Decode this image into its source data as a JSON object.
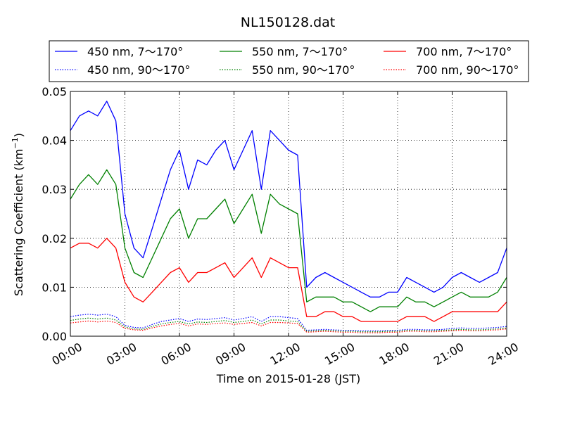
{
  "chart_data": {
    "type": "line",
    "title": "NL150128.dat",
    "xlabel": "Time on 2015-01-28 (JST)",
    "ylabel": "Scattering Coefficient (km",
    "ylabel_sup": "−1",
    "ylabel_close": ")",
    "xlim": [
      "00:00",
      "24:00"
    ],
    "ylim": [
      0.0,
      0.05
    ],
    "x_ticks": [
      "00:00",
      "03:00",
      "06:00",
      "09:00",
      "12:00",
      "15:00",
      "18:00",
      "21:00",
      "24:00"
    ],
    "y_ticks": [
      "0.00",
      "0.01",
      "0.02",
      "0.03",
      "0.04",
      "0.05"
    ],
    "grid": true,
    "legend_position": "top",
    "x": [
      "00:00",
      "00:30",
      "01:00",
      "01:30",
      "02:00",
      "02:30",
      "03:00",
      "03:30",
      "04:00",
      "04:30",
      "05:00",
      "05:30",
      "06:00",
      "06:30",
      "07:00",
      "07:30",
      "08:00",
      "08:30",
      "09:00",
      "09:30",
      "10:00",
      "10:30",
      "11:00",
      "11:30",
      "12:00",
      "12:30",
      "13:00",
      "13:30",
      "14:00",
      "14:30",
      "15:00",
      "15:30",
      "16:00",
      "16:30",
      "17:00",
      "17:30",
      "18:00",
      "18:30",
      "19:00",
      "19:30",
      "20:00",
      "20:30",
      "21:00",
      "21:30",
      "22:00",
      "22:30",
      "23:00",
      "23:30",
      "24:00"
    ],
    "series": [
      {
        "name": "450 nm, 7～170°",
        "color": "#0000ff",
        "style": "solid",
        "values": [
          0.042,
          0.045,
          0.046,
          0.045,
          0.048,
          0.044,
          0.025,
          0.018,
          0.016,
          0.022,
          0.028,
          0.034,
          0.038,
          0.03,
          0.036,
          0.035,
          0.038,
          0.04,
          0.034,
          0.038,
          0.042,
          0.03,
          0.042,
          0.04,
          0.038,
          0.037,
          0.01,
          0.012,
          0.013,
          0.012,
          0.011,
          0.01,
          0.009,
          0.008,
          0.008,
          0.009,
          0.009,
          0.012,
          0.011,
          0.01,
          0.009,
          0.01,
          0.012,
          0.013,
          0.012,
          0.011,
          0.012,
          0.013,
          0.018
        ]
      },
      {
        "name": "450 nm, 90～170°",
        "color": "#0000ff",
        "style": "dotted",
        "values": [
          0.004,
          0.0043,
          0.0045,
          0.0043,
          0.0045,
          0.004,
          0.0022,
          0.0018,
          0.0017,
          0.0024,
          0.003,
          0.0033,
          0.0036,
          0.003,
          0.0035,
          0.0034,
          0.0036,
          0.0038,
          0.0033,
          0.0036,
          0.004,
          0.003,
          0.004,
          0.004,
          0.0038,
          0.0036,
          0.0012,
          0.0013,
          0.0014,
          0.0013,
          0.0012,
          0.0012,
          0.0011,
          0.0011,
          0.0011,
          0.0012,
          0.0012,
          0.0014,
          0.0014,
          0.0013,
          0.0013,
          0.0014,
          0.0016,
          0.0017,
          0.0016,
          0.0016,
          0.0017,
          0.0018,
          0.002
        ]
      },
      {
        "name": "550 nm, 7～170°",
        "color": "#008000",
        "style": "solid",
        "values": [
          0.028,
          0.031,
          0.033,
          0.031,
          0.034,
          0.031,
          0.018,
          0.013,
          0.012,
          0.016,
          0.02,
          0.024,
          0.026,
          0.02,
          0.024,
          0.024,
          0.026,
          0.028,
          0.023,
          0.026,
          0.029,
          0.021,
          0.029,
          0.027,
          0.026,
          0.025,
          0.007,
          0.008,
          0.008,
          0.008,
          0.007,
          0.007,
          0.006,
          0.005,
          0.006,
          0.006,
          0.006,
          0.008,
          0.007,
          0.007,
          0.006,
          0.007,
          0.008,
          0.009,
          0.008,
          0.008,
          0.008,
          0.009,
          0.012
        ]
      },
      {
        "name": "550 nm, 90～170°",
        "color": "#008000",
        "style": "dotted",
        "values": [
          0.0032,
          0.0035,
          0.0037,
          0.0035,
          0.0037,
          0.0033,
          0.0019,
          0.0015,
          0.0014,
          0.002,
          0.0025,
          0.0028,
          0.003,
          0.0025,
          0.0029,
          0.0028,
          0.003,
          0.0032,
          0.0028,
          0.003,
          0.0033,
          0.0025,
          0.0033,
          0.0033,
          0.0031,
          0.003,
          0.001,
          0.0011,
          0.0012,
          0.0011,
          0.001,
          0.001,
          0.0009,
          0.0009,
          0.0009,
          0.001,
          0.001,
          0.0012,
          0.0012,
          0.0011,
          0.0011,
          0.0012,
          0.0013,
          0.0014,
          0.0013,
          0.0013,
          0.0014,
          0.0015,
          0.0017
        ]
      },
      {
        "name": "700 nm, 7～170°",
        "color": "#ff0000",
        "style": "solid",
        "values": [
          0.018,
          0.019,
          0.019,
          0.018,
          0.02,
          0.018,
          0.011,
          0.008,
          0.007,
          0.009,
          0.011,
          0.013,
          0.014,
          0.011,
          0.013,
          0.013,
          0.014,
          0.015,
          0.012,
          0.014,
          0.016,
          0.012,
          0.016,
          0.015,
          0.014,
          0.014,
          0.004,
          0.004,
          0.005,
          0.005,
          0.004,
          0.004,
          0.003,
          0.003,
          0.003,
          0.003,
          0.003,
          0.004,
          0.004,
          0.004,
          0.003,
          0.004,
          0.005,
          0.005,
          0.005,
          0.005,
          0.005,
          0.005,
          0.007
        ]
      },
      {
        "name": "700 nm, 90～170°",
        "color": "#ff0000",
        "style": "dotted",
        "values": [
          0.0027,
          0.0029,
          0.0031,
          0.0029,
          0.0031,
          0.0028,
          0.0016,
          0.0013,
          0.0012,
          0.0017,
          0.0021,
          0.0024,
          0.0026,
          0.0021,
          0.0025,
          0.0024,
          0.0026,
          0.0027,
          0.0024,
          0.0026,
          0.0028,
          0.0021,
          0.0028,
          0.0028,
          0.0027,
          0.0026,
          0.0008,
          0.0009,
          0.001,
          0.0009,
          0.0008,
          0.0008,
          0.0007,
          0.0007,
          0.0007,
          0.0008,
          0.0008,
          0.001,
          0.001,
          0.0009,
          0.0009,
          0.001,
          0.0011,
          0.0012,
          0.0011,
          0.0011,
          0.0012,
          0.0013,
          0.0015
        ]
      }
    ]
  }
}
